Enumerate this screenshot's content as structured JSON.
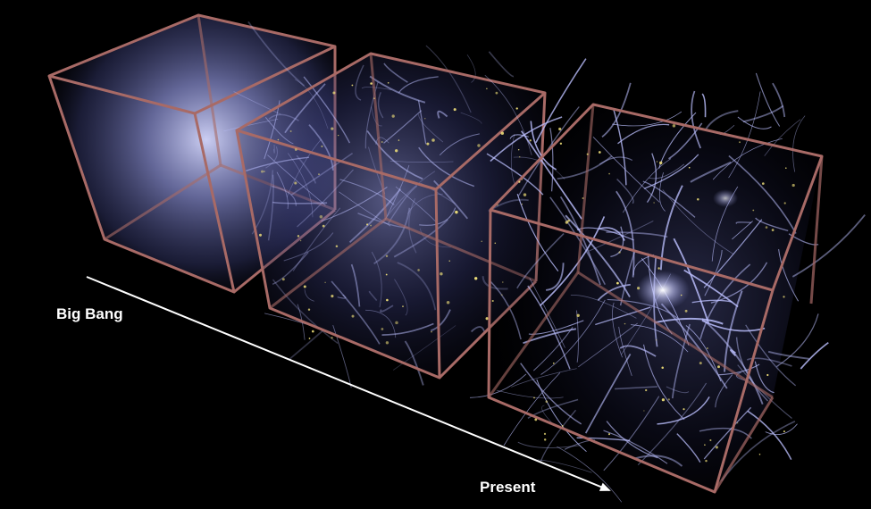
{
  "labels": {
    "start": "Big Bang",
    "end": "Present"
  },
  "colors": {
    "background": "#000000",
    "cube_edge": "#a86a66",
    "matter_glow": "#bcc0ff",
    "galaxy_points": "#f2e27a",
    "arrow": "#ffffff"
  },
  "panels": [
    {
      "stage": "early",
      "structure": "diffuse"
    },
    {
      "stage": "middle",
      "structure": "emerging filaments"
    },
    {
      "stage": "present",
      "structure": "cosmic web"
    }
  ]
}
